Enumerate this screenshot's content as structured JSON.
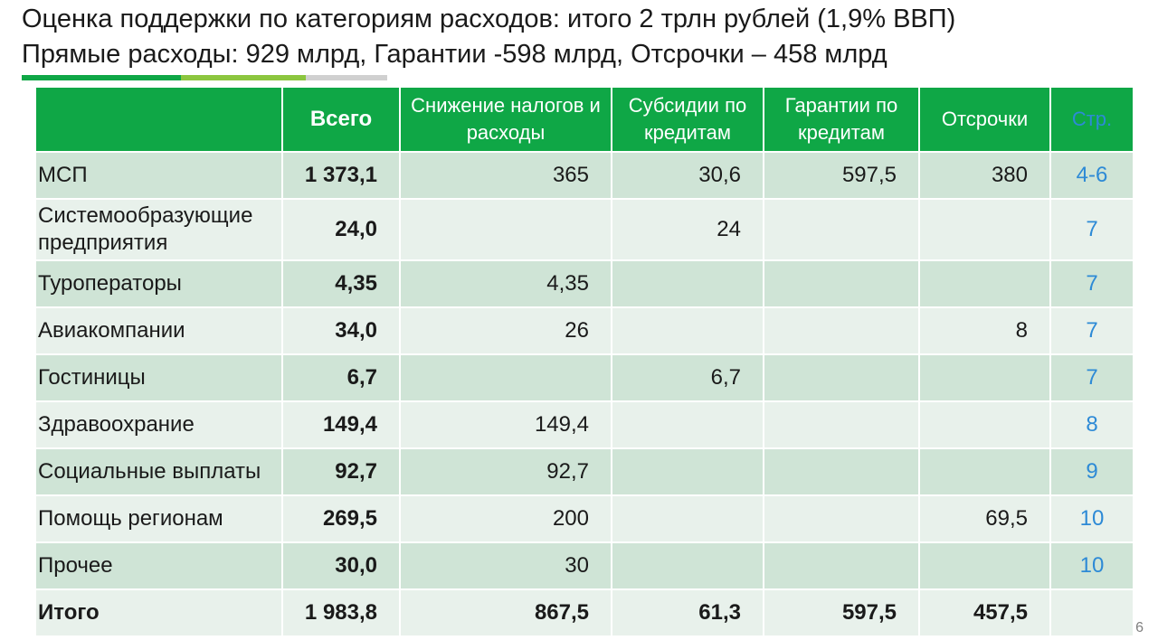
{
  "header": {
    "title": "Оценка поддержки по категориям расходов: итого 2 трлн рублей (1,9% ВВП)",
    "subtitle": "Прямые расходы: 929 млрд, Гарантии -598 млрд, Отсрочки – 458 млрд"
  },
  "table": {
    "columns": [
      "",
      "Всего",
      "Снижение налогов и расходы",
      "Субсидии по кредитам",
      "Гарантии по кредитам",
      "Отсрочки",
      "Стр."
    ],
    "rows": [
      {
        "category": "МСП",
        "total": "1 373,1",
        "tax": "365",
        "subsidies": "30,6",
        "guarantees": "597,5",
        "deferrals": "380",
        "page": "4-6"
      },
      {
        "category": "Системообразующие предприятия",
        "total": "24,0",
        "tax": "",
        "subsidies": "24",
        "guarantees": "",
        "deferrals": "",
        "page": "7"
      },
      {
        "category": "Туроператоры",
        "total": "4,35",
        "tax": "4,35",
        "subsidies": "",
        "guarantees": "",
        "deferrals": "",
        "page": "7"
      },
      {
        "category": "Авиакомпании",
        "total": "34,0",
        "tax": "26",
        "subsidies": "",
        "guarantees": "",
        "deferrals": "8",
        "page": "7"
      },
      {
        "category": "Гостиницы",
        "total": "6,7",
        "tax": "",
        "subsidies": "6,7",
        "guarantees": "",
        "deferrals": "",
        "page": "7"
      },
      {
        "category": "Здравоохрание",
        "total": "149,4",
        "tax": "149,4",
        "subsidies": "",
        "guarantees": "",
        "deferrals": "",
        "page": "8"
      },
      {
        "category": "Социальные выплаты",
        "total": "92,7",
        "tax": "92,7",
        "subsidies": "",
        "guarantees": "",
        "deferrals": "",
        "page": "9"
      },
      {
        "category": "Помощь регионам",
        "total": "269,5",
        "tax": "200",
        "subsidies": "",
        "guarantees": "",
        "deferrals": "69,5",
        "page": "10"
      },
      {
        "category": "Прочее",
        "total": "30,0",
        "tax": "30",
        "subsidies": "",
        "guarantees": "",
        "deferrals": "",
        "page": "10"
      }
    ],
    "total_row": {
      "category": "Итого",
      "total": "1 983,8",
      "tax": "867,5",
      "subsidies": "61,3",
      "guarantees": "597,5",
      "deferrals": "457,5",
      "page": ""
    }
  },
  "slide_number": "6",
  "colors": {
    "header_green": "#0fa746",
    "row_dark": "#cfe4d6",
    "row_light": "#e8f1eb",
    "link_blue": "#2d8ad6"
  }
}
